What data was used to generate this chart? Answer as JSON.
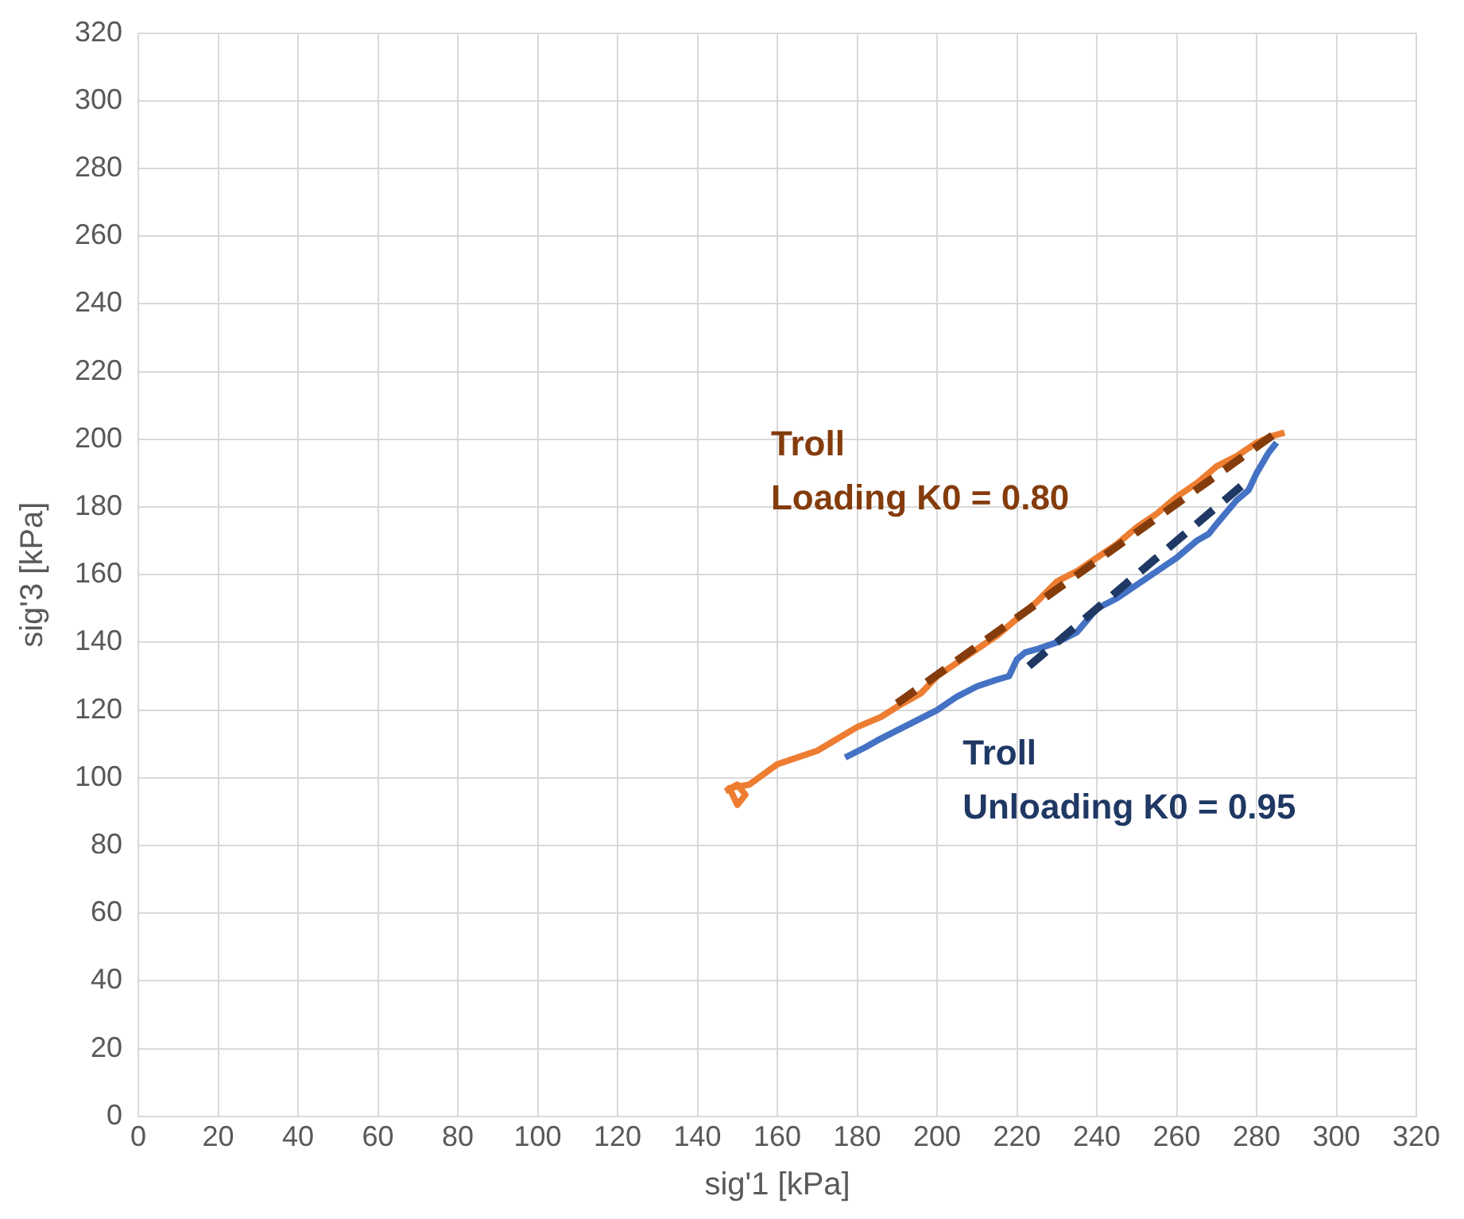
{
  "chart_data": {
    "type": "line",
    "xlabel": "sig'1 [kPa]",
    "ylabel": "sig'3 [kPa]",
    "xlim": [
      0,
      320
    ],
    "xticks": [
      0,
      20,
      40,
      60,
      80,
      100,
      120,
      140,
      160,
      180,
      200,
      220,
      240,
      260,
      280,
      300,
      320
    ],
    "ylim": [
      0,
      320
    ],
    "yticks": [
      0,
      20,
      40,
      60,
      80,
      100,
      120,
      140,
      160,
      180,
      200,
      220,
      240,
      260,
      280,
      300,
      320
    ],
    "grid": true,
    "legend": false,
    "marker": "none",
    "series": [
      {
        "color": "#ed7d31",
        "x": [
          147,
          150,
          152,
          150,
          148,
          153,
          160,
          170,
          180,
          186,
          190,
          196,
          200,
          205,
          210,
          215,
          220,
          225,
          230,
          235,
          240,
          245,
          250,
          255,
          260,
          265,
          270,
          275,
          280,
          284,
          287
        ],
        "values": [
          96,
          98,
          95,
          92,
          97,
          98,
          104,
          108,
          115,
          118,
          121,
          125,
          130,
          134,
          138,
          142,
          147,
          152,
          158,
          161,
          165,
          169,
          174,
          178,
          183,
          187,
          192,
          195,
          199,
          201,
          202
        ]
      },
      {
        "color": "#4472c4",
        "x": [
          177,
          182,
          185,
          190,
          195,
          200,
          205,
          210,
          215,
          218,
          220,
          222,
          225,
          230,
          235,
          240,
          245,
          250,
          255,
          260,
          265,
          268,
          270,
          275,
          278,
          280,
          283,
          285
        ],
        "values": [
          106,
          109,
          111,
          114,
          117,
          120,
          124,
          127,
          129,
          130,
          135,
          137,
          138,
          140,
          143,
          150,
          153,
          157,
          161,
          165,
          170,
          172,
          175,
          182,
          185,
          190,
          196,
          199
        ]
      },
      {
        "color": "#843c0c",
        "line_style": "dashed",
        "x": [
          190,
          285
        ],
        "values": [
          122,
          202
        ]
      },
      {
        "color": "#1f3864",
        "line_style": "dashed",
        "x": [
          223,
          278
        ],
        "values": [
          133,
          188
        ]
      }
    ],
    "annotations": [
      "Troll\nLoading K0 = 0.80",
      "Troll\nUnloading K0 = 0.95"
    ]
  }
}
